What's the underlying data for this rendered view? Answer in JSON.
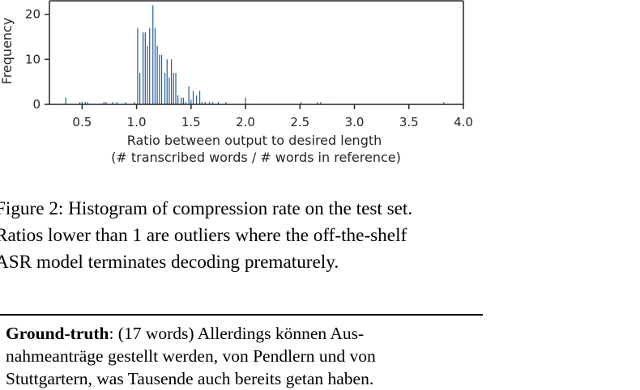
{
  "chart_data": {
    "type": "bar",
    "xlabel": "Ratio between output to desired length",
    "xlabel_sub": "(# transcribed words / # words in reference)",
    "ylabel": "Frequency",
    "xlim": [
      0.2,
      4.0
    ],
    "ylim": [
      0,
      23
    ],
    "xticks": [
      "0.5",
      "1.0",
      "1.5",
      "2.0",
      "2.5",
      "3.0",
      "3.5",
      "4.0"
    ],
    "yticks": [
      "0",
      "10",
      "20"
    ],
    "color": "#1f5f9e",
    "x": [
      0.35,
      0.48,
      0.5,
      0.53,
      0.55,
      0.7,
      0.72,
      0.78,
      0.82,
      0.9,
      0.98,
      1.01,
      1.03,
      1.06,
      1.08,
      1.1,
      1.12,
      1.15,
      1.17,
      1.19,
      1.21,
      1.23,
      1.26,
      1.28,
      1.3,
      1.32,
      1.34,
      1.36,
      1.38,
      1.41,
      1.43,
      1.45,
      1.48,
      1.5,
      1.52,
      1.55,
      1.58,
      1.6,
      1.63,
      1.67,
      1.7,
      1.75,
      1.82,
      2.0,
      2.51,
      2.66,
      2.69,
      3.82
    ],
    "values": [
      1.5,
      0.5,
      0.5,
      0.5,
      0.5,
      0.5,
      0.5,
      0.5,
      0.5,
      0.5,
      0.5,
      17,
      7,
      16,
      16,
      13,
      17,
      22,
      17,
      13,
      11,
      11,
      7,
      10,
      6,
      10,
      7,
      7,
      2,
      1.5,
      1.5,
      0.5,
      4,
      1,
      3,
      2,
      3,
      0.5,
      0.5,
      0.5,
      0.5,
      0.5,
      0.5,
      1.5,
      0.5,
      0.5,
      0.5,
      0.5
    ]
  },
  "caption": {
    "line1": "Figure 2: Histogram of compression rate on the test set.",
    "line2": "Ratios lower than 1 are outliers where the off-the-shelf",
    "line3": "ASR model terminates decoding prematurely."
  },
  "example": {
    "label": "Ground-truth",
    "line1_rest": ":  (17 words) Allerdings können Aus-",
    "line2": "nahmeanträge gestellt werden, von Pendlern und von",
    "line3": "Stuttgartern, was Tausende auch bereits getan haben."
  }
}
